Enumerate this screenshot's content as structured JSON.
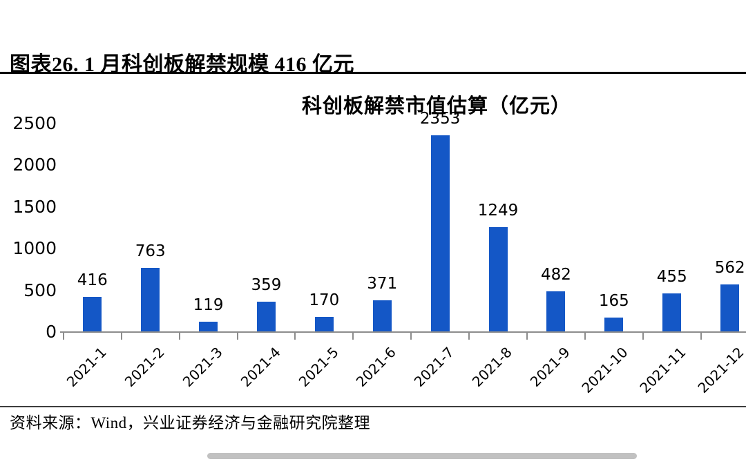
{
  "figure": {
    "title": "图表26. 1 月科创板解禁规模 416 亿元",
    "source": "资料来源：Wind，兴业证券经济与金融研究院整理"
  },
  "chart_data": {
    "type": "bar",
    "title": "科创板解禁市值估算（亿元）",
    "categories": [
      "2021-1",
      "2021-2",
      "2021-3",
      "2021-4",
      "2021-5",
      "2021-6",
      "2021-7",
      "2021-8",
      "2021-9",
      "2021-10",
      "2021-11",
      "2021-12"
    ],
    "values": [
      416,
      763,
      119,
      359,
      170,
      371,
      2353,
      1249,
      482,
      165,
      455,
      562
    ],
    "xlabel": "",
    "ylabel": "",
    "ylim": [
      0,
      2500
    ],
    "yticks": [
      0,
      500,
      1000,
      1500,
      2000,
      2500
    ],
    "grid": false,
    "legend": "none",
    "data_labels": true,
    "bar_color": "#1457c6"
  },
  "colors": {
    "bar": "#1457c6",
    "axis": "#8c8c8c",
    "text": "#000000",
    "title_rule": "#000000",
    "footer_divider": "#3d3d3d",
    "scrollbar_thumb": "#c1c1c1",
    "background": "#ffffff"
  }
}
